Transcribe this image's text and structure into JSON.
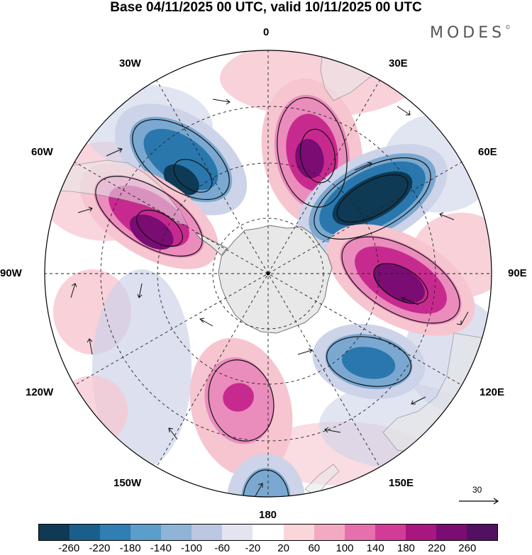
{
  "title": "Base 04/11/2025 00 UTC, valid 10/11/2025 00 UTC",
  "logo": "MODES",
  "logo_mark": "©",
  "longitude_labels": [
    "0",
    "30E",
    "60E",
    "90E",
    "120E",
    "150E",
    "180",
    "150W",
    "120W",
    "90W",
    "60W",
    "30W"
  ],
  "vector_reference_label": "30",
  "colorbar": {
    "ticks": [
      "-260",
      "-220",
      "-180",
      "-140",
      "-100",
      "-60",
      "-20",
      "20",
      "60",
      "100",
      "140",
      "180",
      "220",
      "260"
    ],
    "colors": [
      "#0e3a55",
      "#1a5e8c",
      "#2f7fb4",
      "#5b9ecb",
      "#8fb4d8",
      "#bcc7e2",
      "#e4e4f1",
      "#ffffff",
      "#fbd6d8",
      "#f4a9c3",
      "#e76fae",
      "#d23c97",
      "#a8177f",
      "#7a0c73",
      "#521062"
    ]
  },
  "anomaly_colors": {
    "positive_weak": "#f6c5d0",
    "positive_mid": "#ea8cbc",
    "positive_strong": "#c72a8e",
    "positive_max": "#7a0c73",
    "negative_weak": "#cdd3e8",
    "negative_mid": "#7aa8d0",
    "negative_strong": "#2a77ad",
    "negative_max": "#0e3a55",
    "land": "#e8e8e8"
  }
}
